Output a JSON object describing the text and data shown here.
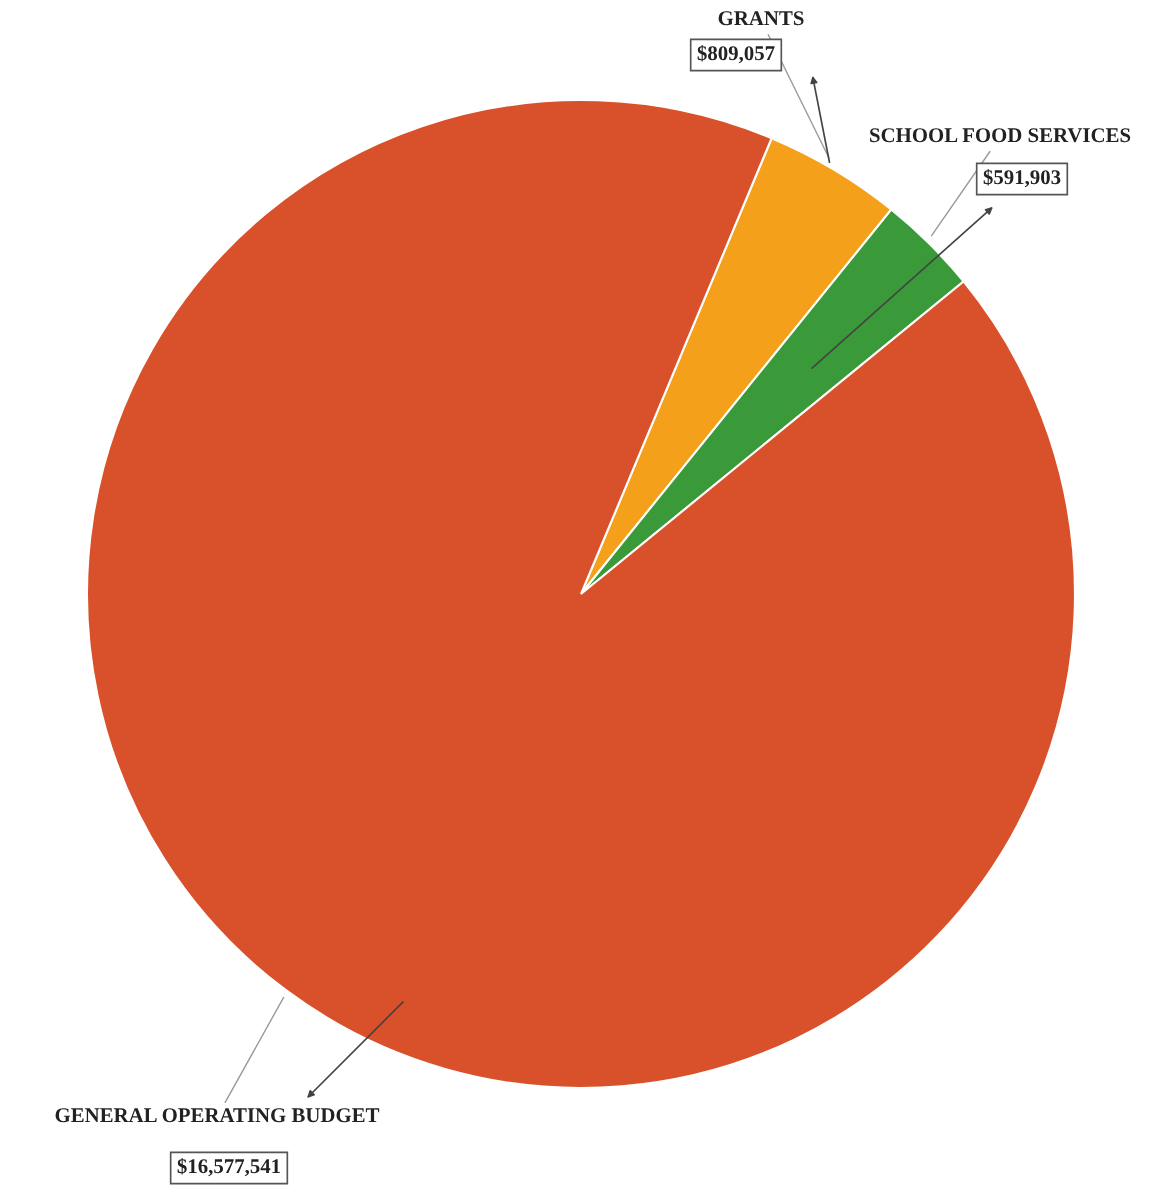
{
  "chart_data": {
    "type": "pie",
    "categories": [
      "GRANTS",
      "SCHOOL FOOD SERVICES",
      "GENERAL OPERATING BUDGET"
    ],
    "values": [
      809057,
      591903,
      16577541
    ],
    "colors": [
      "#f5a01a",
      "#3a9a3a",
      "#d9512a"
    ],
    "value_labels": [
      "$809,057",
      "$591,903",
      "$16,577,541"
    ],
    "legend": false
  }
}
